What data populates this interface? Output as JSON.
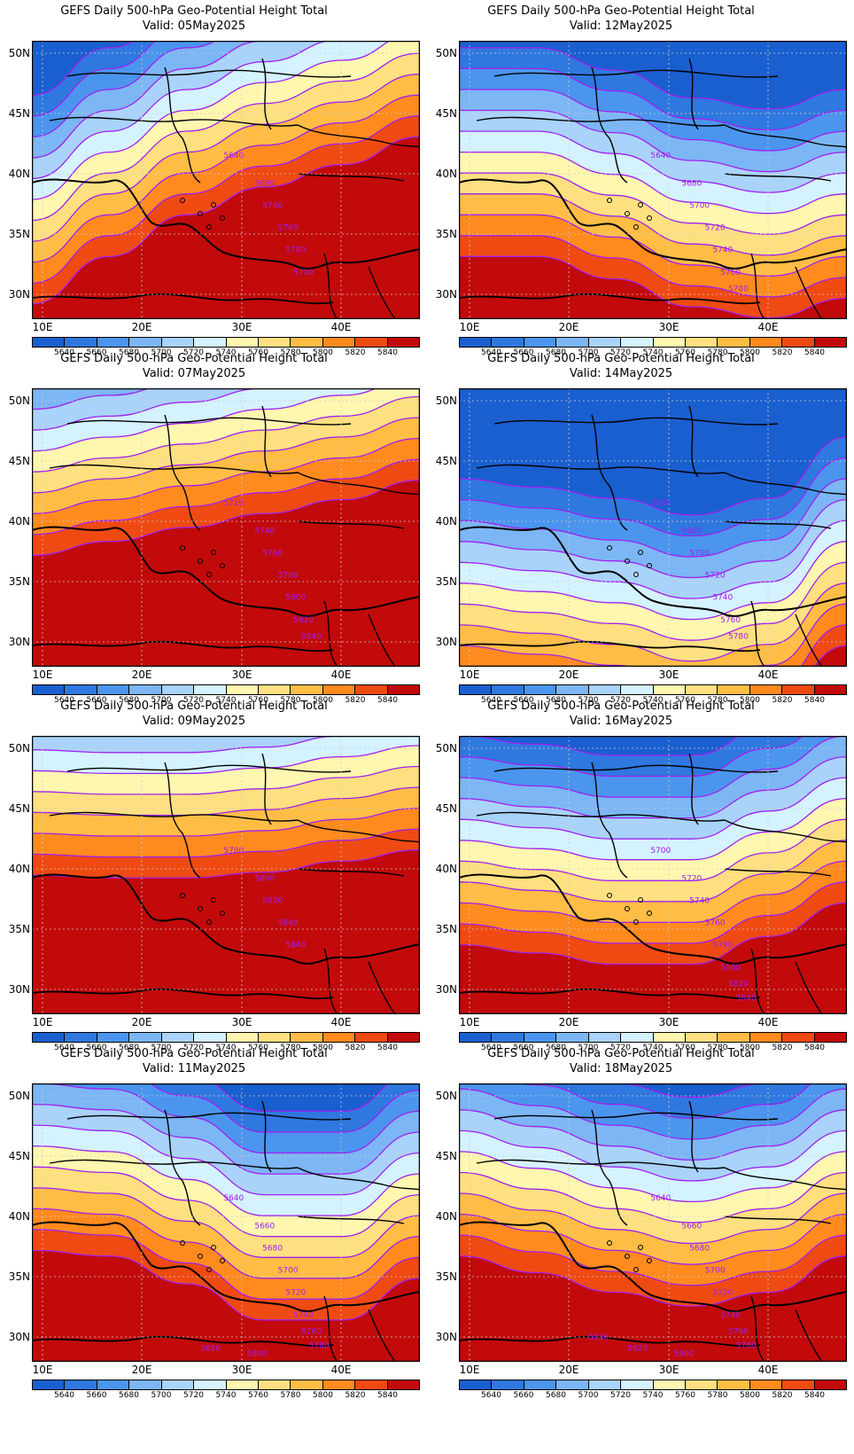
{
  "figure": {
    "levels": [
      5640,
      5660,
      5680,
      5700,
      5720,
      5740,
      5760,
      5780,
      5800,
      5820,
      5840
    ],
    "colors": [
      "#1a5fd0",
      "#2f78e0",
      "#4b95ee",
      "#7cb6f5",
      "#a9d3fb",
      "#d4f2ff",
      "#fff7b0",
      "#ffe080",
      "#ffbd45",
      "#ff8a1e",
      "#ef4a12",
      "#c20a0a"
    ],
    "contour_color": "#a020f0",
    "x_ticks": [
      "10E",
      "20E",
      "30E",
      "40E"
    ],
    "y_ticks": [
      "50N",
      "45N",
      "40N",
      "35N",
      "30N"
    ],
    "colorbar_labels": [
      "5640",
      "5660",
      "5680",
      "5700",
      "5720",
      "5740",
      "5760",
      "5780",
      "5800",
      "5820",
      "5840"
    ]
  },
  "panels": [
    {
      "title": "GEFS Daily 500-hPa Geo-Potential Height Total",
      "valid": "Valid: 05May2025",
      "base_level": 5780,
      "labels": [
        "5640",
        "5680",
        "5740",
        "5760",
        "5780",
        "5700"
      ]
    },
    {
      "title": "GEFS Daily 500-hPa Geo-Potential Height Total",
      "valid": "Valid: 12May2025",
      "base_level": 5740,
      "labels": [
        "5640",
        "5680",
        "5700",
        "5720",
        "5740",
        "5760",
        "5780"
      ]
    },
    {
      "title": "GEFS Daily 500-hPa Geo-Potential Height Total",
      "valid": "Valid: 07May2025",
      "base_level": 5800,
      "labels": [
        "5720",
        "5740",
        "5760",
        "5780",
        "5800",
        "5820",
        "5840"
      ]
    },
    {
      "title": "GEFS Daily 500-hPa Geo-Potential Height Total",
      "valid": "Valid: 14May2025",
      "base_level": 5700,
      "labels": [
        "5640",
        "5680",
        "5700",
        "5720",
        "5740",
        "5760",
        "5780"
      ]
    },
    {
      "title": "GEFS Daily 500-hPa Geo-Potential Height Total",
      "valid": "Valid: 09May2025",
      "base_level": 5800,
      "labels": [
        "5780",
        "5800",
        "5820",
        "5840",
        "5840"
      ]
    },
    {
      "title": "GEFS Daily 500-hPa Geo-Potential Height Total",
      "valid": "Valid: 16May2025",
      "base_level": 5760,
      "labels": [
        "5700",
        "5720",
        "5740",
        "5760",
        "5780",
        "5800",
        "5820",
        "5840"
      ]
    },
    {
      "title": "GEFS Daily 500-hPa Geo-Potential Height Total",
      "valid": "Valid: 11May2025",
      "base_level": 5760,
      "labels": [
        "5640",
        "5660",
        "5680",
        "5700",
        "5720",
        "5740",
        "5760",
        "5780",
        "5800",
        "5820"
      ]
    },
    {
      "title": "GEFS Daily 500-hPa Geo-Potential Height Total",
      "valid": "Valid: 18May2025",
      "base_level": 5760,
      "labels": [
        "5640",
        "5660",
        "5680",
        "5700",
        "5720",
        "5740",
        "5760",
        "5780",
        "5800",
        "5820",
        "5840"
      ]
    }
  ]
}
